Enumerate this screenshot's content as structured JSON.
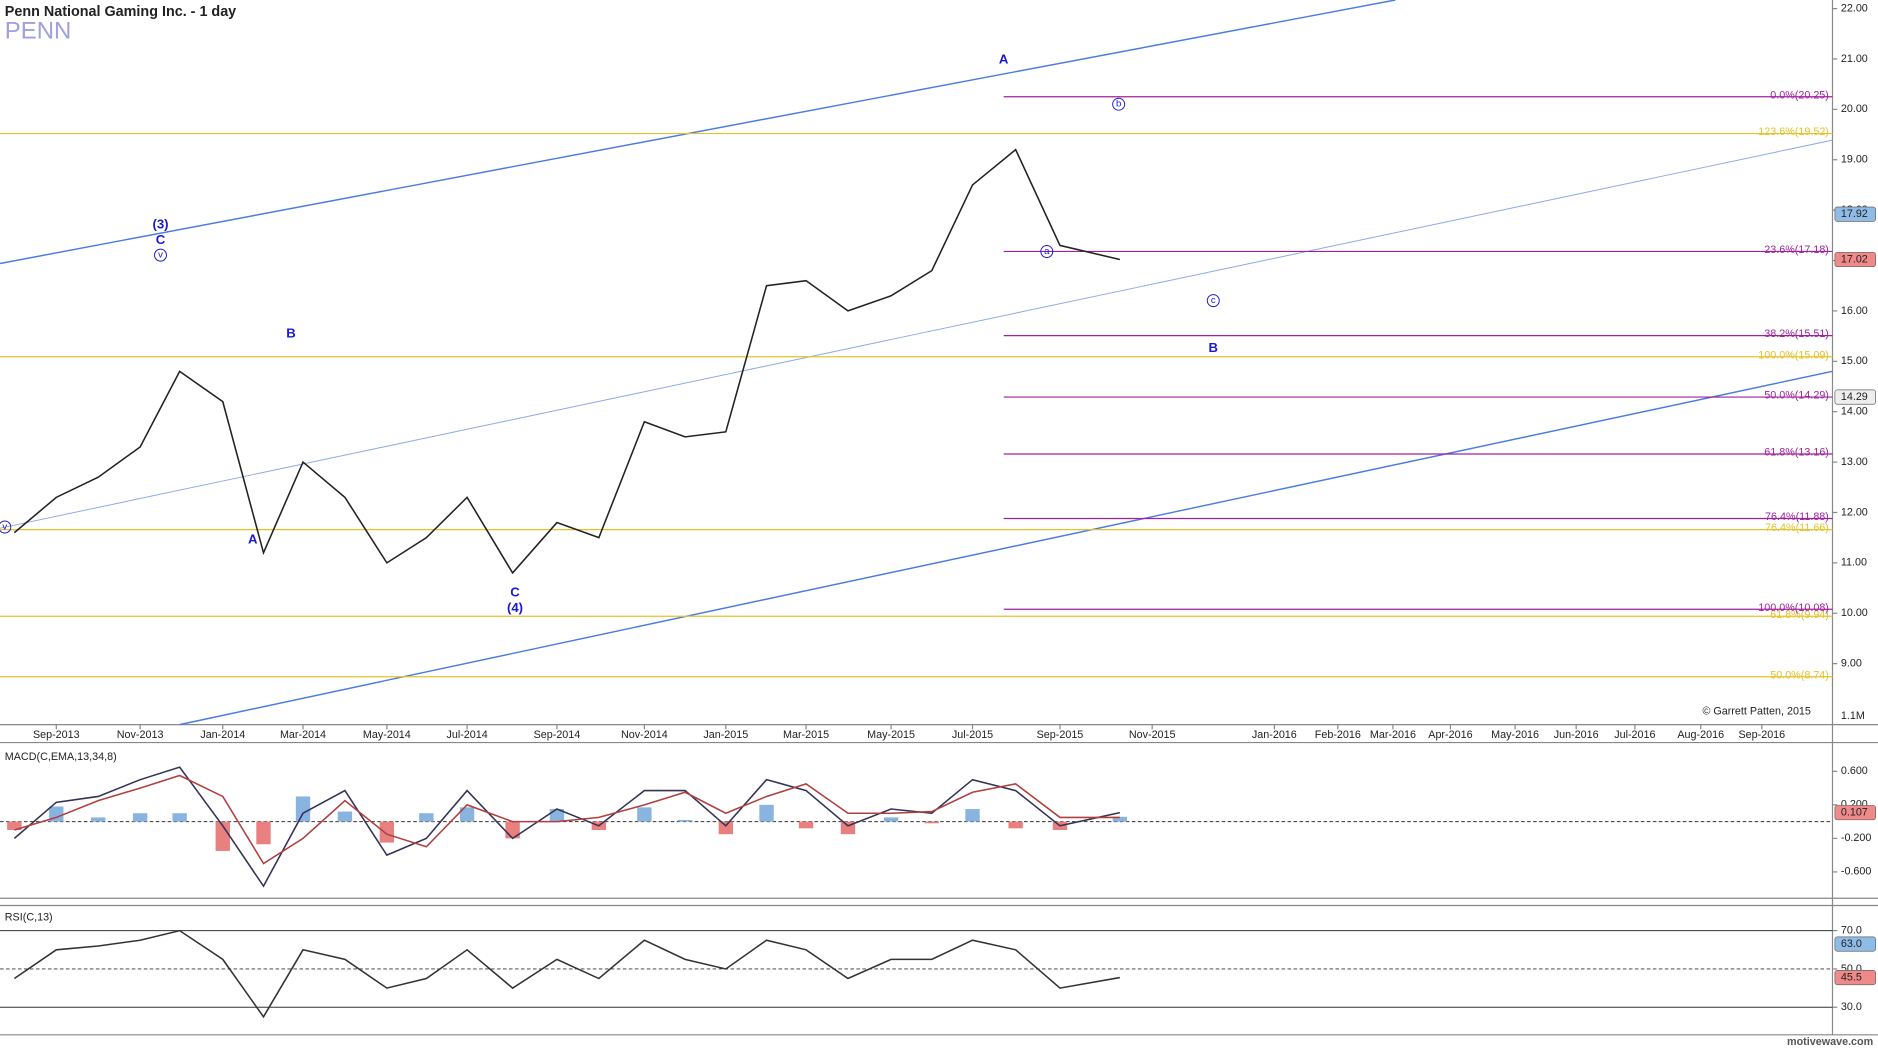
{
  "chart_data": [
    {
      "type": "line",
      "title": "Penn National Gaming Inc. - 1 day",
      "subtitle": "PENN",
      "categories": [
        null,
        "Sep-2013",
        null,
        "Nov-2013",
        null,
        "Jan-2014",
        null,
        "Mar-2014",
        null,
        "May-2014",
        null,
        "Jul-2014",
        null,
        "Sep-2014",
        null,
        "Nov-2014",
        null,
        "Jan-2015",
        null,
        "Mar-2015",
        null,
        "May-2015",
        null,
        "Jul-2015",
        null,
        "Sep-2015",
        null,
        "Nov-2015",
        null,
        "Jan-2016",
        "Feb-2016",
        "Mar-2016",
        "Apr-2016",
        "May-2016",
        "Jun-2016",
        "Jul-2016",
        "Aug-2016",
        "Sep-2016"
      ],
      "series": [
        {
          "color": "#222222",
          "values": [
            11.6,
            12.3,
            12.7,
            13.3,
            14.8,
            14.2,
            11.2,
            13.0,
            12.3,
            11.0,
            11.5,
            12.3,
            10.8,
            11.8,
            11.5,
            13.8,
            13.5,
            13.6,
            16.5,
            16.6,
            16.0,
            16.3,
            16.8,
            18.5,
            19.2,
            17.3,
            17.02,
            null,
            null,
            null,
            null,
            null,
            null,
            null,
            null,
            null,
            null,
            null
          ]
        }
      ],
      "ylim": [
        7.79,
        22.17
      ],
      "yticks": [
        {
          "value": 9,
          "label": "9.00"
        },
        {
          "value": 10,
          "label": "10.00"
        },
        {
          "value": 11,
          "label": "11.00"
        },
        {
          "value": 12,
          "label": "12.00"
        },
        {
          "value": 13,
          "label": "13.00"
        },
        {
          "value": 14,
          "label": "14.00"
        },
        {
          "value": 15,
          "label": "15.00"
        },
        {
          "value": 16,
          "label": "16.00"
        },
        {
          "value": 17,
          "label": "17.00"
        },
        {
          "value": 18,
          "label": "18.00"
        },
        {
          "value": 19,
          "label": "19.00"
        },
        {
          "value": 20,
          "label": "20.00"
        },
        {
          "value": 21,
          "label": "21.00"
        },
        {
          "value": 22,
          "label": "22.00"
        }
      ],
      "retracement_color": "#a020a0",
      "retracements": [
        {
          "value": 20.25,
          "label": "0.0%(20.25)"
        },
        {
          "value": 17.18,
          "label": "23.6%(17.18)"
        },
        {
          "value": 15.51,
          "label": "38.2%(15.51)"
        },
        {
          "value": 14.29,
          "label": "50.0%(14.29)"
        },
        {
          "value": 13.16,
          "label": "61.8%(13.16)"
        },
        {
          "value": 11.88,
          "label": "76.4%(11.88)"
        },
        {
          "value": 10.08,
          "label": "100.0%(10.08)"
        }
      ],
      "extension_color": "#e6c229",
      "extensions": [
        {
          "value": 19.52,
          "label": "123.6%(19.52)"
        },
        {
          "value": 15.09,
          "label": "100.0%(15.09)"
        },
        {
          "value": 11.66,
          "label": "76.4%(11.66)"
        },
        {
          "value": 9.94,
          "label": "61.8%(9.94)"
        },
        {
          "value": 8.74,
          "label": "50.0%(8.74)"
        }
      ],
      "markers": [
        {
          "value": 17.92,
          "color": "#8fbce6"
        },
        {
          "value": 17.02,
          "color": "#f08a8a"
        },
        {
          "value": 14.29,
          "color": "#eeeeee"
        }
      ],
      "annotations": [
        "(3)",
        "C",
        "v",
        "A",
        "B",
        "C",
        "(4)",
        "A",
        "b",
        "a",
        "c",
        "B",
        "v"
      ],
      "volume_axis_label": "1.1M",
      "copyright": "© Garrett Patten, 2015"
    },
    {
      "type": "line",
      "title": "MACD(C,EMA,13,34,8)",
      "series": [
        {
          "color": "#333355",
          "values": [
            -0.2,
            0.23,
            0.3,
            0.5,
            0.65,
            -0.05,
            -0.77,
            0.1,
            0.37,
            -0.4,
            -0.2,
            0.37,
            -0.2,
            0.15,
            -0.05,
            0.37,
            0.37,
            -0.05,
            0.5,
            0.37,
            -0.05,
            0.15,
            0.1,
            0.5,
            0.37,
            -0.05,
            0.107,
            null,
            null,
            null,
            null,
            null,
            null,
            null,
            null,
            null,
            null,
            null
          ]
        },
        {
          "color": "#b04040",
          "values": [
            -0.1,
            0.05,
            0.25,
            0.4,
            0.55,
            0.3,
            -0.5,
            -0.2,
            0.25,
            -0.15,
            -0.3,
            0.2,
            0.0,
            0.0,
            0.05,
            0.2,
            0.35,
            0.1,
            0.3,
            0.45,
            0.1,
            0.1,
            0.12,
            0.35,
            0.45,
            0.05,
            0.05,
            null,
            null,
            null,
            null,
            null,
            null,
            null,
            null,
            null,
            null,
            null
          ]
        }
      ],
      "histogram": [
        -0.1,
        0.18,
        0.05,
        0.1,
        0.1,
        -0.35,
        -0.27,
        0.3,
        0.12,
        -0.25,
        0.1,
        0.17,
        -0.2,
        0.15,
        -0.1,
        0.17,
        0.02,
        -0.15,
        0.2,
        -0.08,
        -0.15,
        0.05,
        -0.02,
        0.15,
        -0.08,
        -0.1,
        0.057,
        null,
        null,
        null,
        null,
        null,
        null,
        null,
        null,
        null,
        null,
        null
      ],
      "histogram_colors": [
        "#8ab4e0",
        "#e88080"
      ],
      "ylim": [
        -0.886,
        0.914
      ],
      "yticks": [
        {
          "value": 0.6,
          "label": "0.600"
        },
        {
          "value": 0.2,
          "label": "0.200"
        },
        {
          "value": -0.2,
          "label": "-0.200"
        },
        {
          "value": -0.6,
          "label": "-0.600"
        }
      ],
      "reference_lines": [
        {
          "value": 0,
          "dashed": true
        }
      ],
      "markers": [
        {
          "value": 0.107,
          "color": "#f08a8a"
        }
      ]
    },
    {
      "type": "line",
      "title": "RSI(C,13)",
      "series": [
        {
          "color": "#333333",
          "values": [
            45,
            60,
            62,
            65,
            70,
            55,
            25,
            60,
            55,
            40,
            45,
            60,
            40,
            55,
            45,
            65,
            55,
            50,
            65,
            60,
            45,
            55,
            55,
            65,
            60,
            40,
            45.5,
            null,
            null,
            null,
            null,
            null,
            null,
            null,
            null,
            null,
            null,
            null
          ]
        }
      ],
      "ylim": [
        15.6,
        81.9
      ],
      "yticks": [
        {
          "value": 70,
          "label": "70.0"
        },
        {
          "value": 50,
          "label": "50.0"
        },
        {
          "value": 30,
          "label": "30.0"
        }
      ],
      "reference_lines": [
        {
          "value": 70,
          "dashed": false
        },
        {
          "value": 50,
          "dashed": true
        },
        {
          "value": 30,
          "dashed": false
        }
      ],
      "markers": [
        {
          "value": 63,
          "label": "63.0",
          "color": "#8fbce6"
        },
        {
          "value": 45.5,
          "color": "#f08a8a"
        }
      ]
    }
  ],
  "footer": "motivewave.com"
}
